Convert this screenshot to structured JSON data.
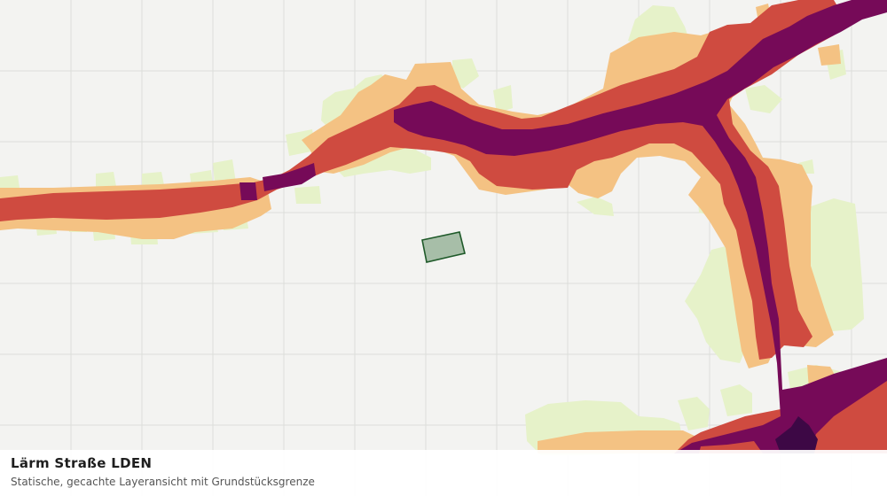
{
  "map": {
    "colors": {
      "background": "#f3f3f1",
      "grid": "#dddedb",
      "band_lightest": "#e6f2c9",
      "band_light": "#f4c283",
      "band_medium": "#cf4b40",
      "band_high": "#760a58",
      "band_highest": "#3d0845",
      "parcel_fill": "#a7bea8",
      "parcel_stroke": "#1f5a2a"
    },
    "icons": {
      "parcel": "parcel-boundary-icon"
    }
  },
  "caption": {
    "title": "Lärm Straße LDEN",
    "subtitle": "Statische, gecachte Layeransicht mit Grundstücksgrenze"
  }
}
